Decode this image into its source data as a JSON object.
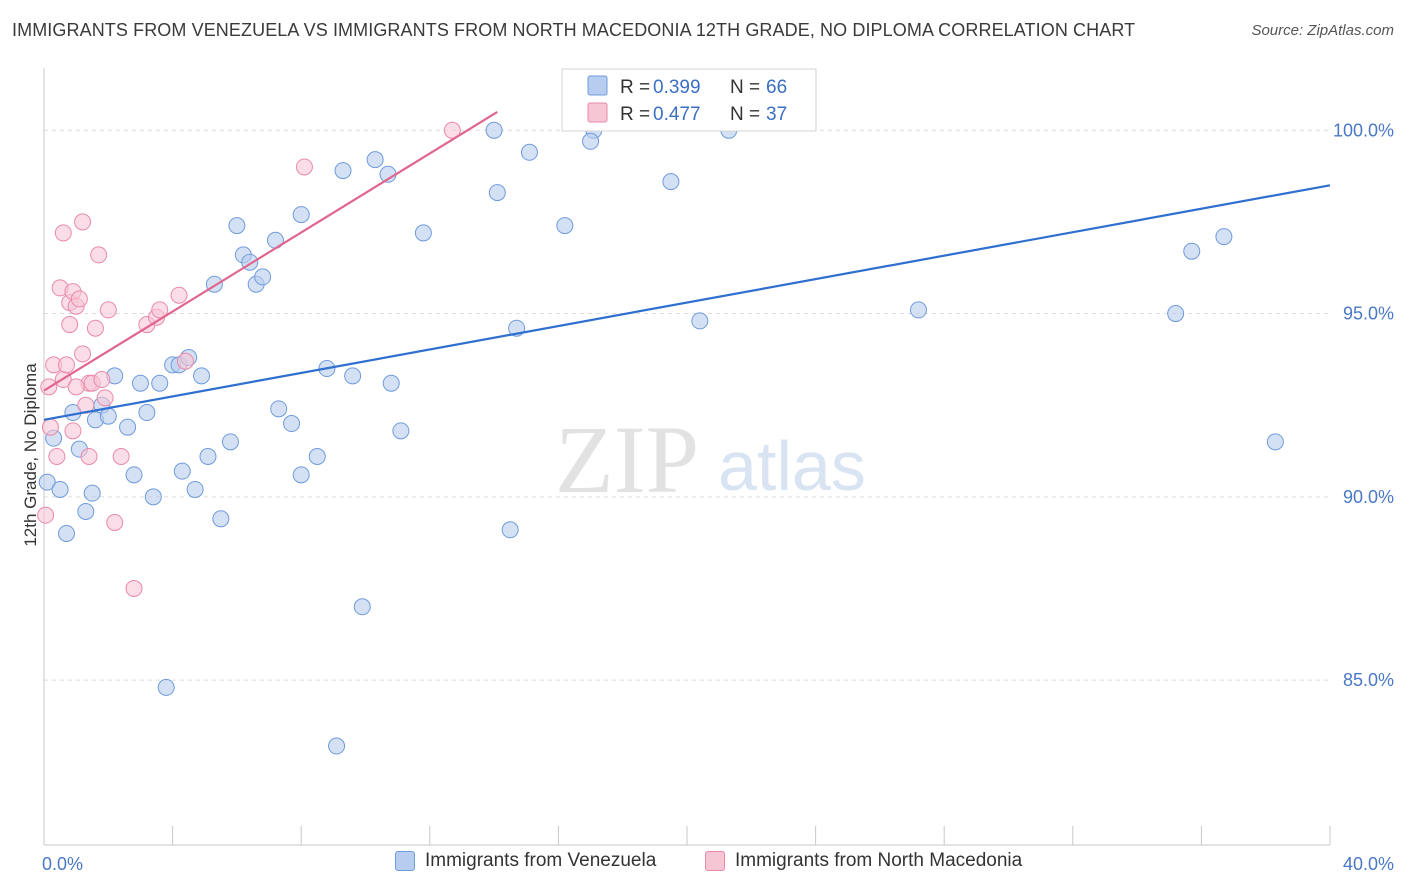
{
  "title": "IMMIGRANTS FROM VENEZUELA VS IMMIGRANTS FROM NORTH MACEDONIA 12TH GRADE, NO DIPLOMA CORRELATION CHART",
  "source": "Source: ZipAtlas.com",
  "watermark": {
    "zip": "ZIP",
    "atlas": "atlas"
  },
  "colors": {
    "blue_fill": "#b7cdef",
    "blue_stroke": "#6f9bdc",
    "blue_line": "#2f6fcf",
    "pink_fill": "#f7c6d5",
    "pink_stroke": "#ea8aa8",
    "pink_line": "#e0668d",
    "tick_text": "#4a78c6",
    "grid": "#dcdcdc"
  },
  "legend": {
    "rows": [
      {
        "r_label": "R = ",
        "r_value": "0.399",
        "n_label": "N = ",
        "n_value": "66"
      },
      {
        "r_label": "R = ",
        "r_value": "0.477",
        "n_label": "N = ",
        "n_value": "37"
      }
    ]
  },
  "chart_data": {
    "type": "scatter",
    "title": "IMMIGRANTS FROM VENEZUELA VS IMMIGRANTS FROM NORTH MACEDONIA 12TH GRADE, NO DIPLOMA CORRELATION CHART",
    "xlabel": "",
    "ylabel": "12th Grade, No Diploma",
    "xlim": [
      0,
      40
    ],
    "ylim": [
      80.5,
      101.7
    ],
    "x_tick_labels": [
      "0.0%",
      "40.0%"
    ],
    "y_ticks": [
      85,
      90,
      95,
      100
    ],
    "y_tick_labels": [
      "85.0%",
      "90.0%",
      "95.0%",
      "100.0%"
    ],
    "series": [
      {
        "name": "Immigrants from Venezuela",
        "color": "blue",
        "r": 0.399,
        "n": 66,
        "trend": {
          "x0": 0,
          "y0": 92.1,
          "x1": 40,
          "y1": 98.5
        },
        "points": [
          [
            0.1,
            90.4
          ],
          [
            0.3,
            91.6
          ],
          [
            0.5,
            90.2
          ],
          [
            0.7,
            89.0
          ],
          [
            0.9,
            92.3
          ],
          [
            1.1,
            91.3
          ],
          [
            1.3,
            89.6
          ],
          [
            1.5,
            90.1
          ],
          [
            1.6,
            92.1
          ],
          [
            1.8,
            92.5
          ],
          [
            2.0,
            92.2
          ],
          [
            2.2,
            93.3
          ],
          [
            2.6,
            91.9
          ],
          [
            2.8,
            90.6
          ],
          [
            3.0,
            93.1
          ],
          [
            3.2,
            92.3
          ],
          [
            3.4,
            90.0
          ],
          [
            3.6,
            93.1
          ],
          [
            3.8,
            84.8
          ],
          [
            4.0,
            93.6
          ],
          [
            4.2,
            93.6
          ],
          [
            4.3,
            90.7
          ],
          [
            4.5,
            93.8
          ],
          [
            4.7,
            90.2
          ],
          [
            4.9,
            93.3
          ],
          [
            5.1,
            91.1
          ],
          [
            5.3,
            95.8
          ],
          [
            5.5,
            89.4
          ],
          [
            5.8,
            91.5
          ],
          [
            6.0,
            97.4
          ],
          [
            6.2,
            96.6
          ],
          [
            6.4,
            96.4
          ],
          [
            6.6,
            95.8
          ],
          [
            6.8,
            96.0
          ],
          [
            7.2,
            97.0
          ],
          [
            7.3,
            92.4
          ],
          [
            7.7,
            92.0
          ],
          [
            8.0,
            90.6
          ],
          [
            8.0,
            97.7
          ],
          [
            8.5,
            91.1
          ],
          [
            8.8,
            93.5
          ],
          [
            9.1,
            83.2
          ],
          [
            9.3,
            98.9
          ],
          [
            9.6,
            93.3
          ],
          [
            9.9,
            87.0
          ],
          [
            10.3,
            99.2
          ],
          [
            10.7,
            98.8
          ],
          [
            10.8,
            93.1
          ],
          [
            11.1,
            91.8
          ],
          [
            11.8,
            97.2
          ],
          [
            14.0,
            100.0
          ],
          [
            14.1,
            98.3
          ],
          [
            14.5,
            89.1
          ],
          [
            14.7,
            94.6
          ],
          [
            15.1,
            99.4
          ],
          [
            16.2,
            97.4
          ],
          [
            17.1,
            100.0
          ],
          [
            19.5,
            98.6
          ],
          [
            20.4,
            94.8
          ],
          [
            21.3,
            100.0
          ],
          [
            27.2,
            95.1
          ],
          [
            35.2,
            95.0
          ],
          [
            35.7,
            96.7
          ],
          [
            36.7,
            97.1
          ],
          [
            38.3,
            91.5
          ],
          [
            17.0,
            99.7
          ]
        ]
      },
      {
        "name": "Immigrants from North Macedonia",
        "color": "pink",
        "r": 0.477,
        "n": 37,
        "trend": {
          "x0": 0,
          "y0": 92.9,
          "x1": 14.1,
          "y1": 100.5
        },
        "points": [
          [
            0.05,
            89.5
          ],
          [
            0.15,
            93.0
          ],
          [
            0.2,
            91.9
          ],
          [
            0.3,
            93.6
          ],
          [
            0.4,
            91.1
          ],
          [
            0.5,
            95.7
          ],
          [
            0.6,
            93.2
          ],
          [
            0.6,
            97.2
          ],
          [
            0.7,
            93.6
          ],
          [
            0.8,
            95.3
          ],
          [
            0.8,
            94.7
          ],
          [
            0.9,
            95.6
          ],
          [
            0.9,
            91.8
          ],
          [
            1.0,
            95.2
          ],
          [
            1.1,
            95.4
          ],
          [
            1.2,
            97.5
          ],
          [
            1.2,
            93.9
          ],
          [
            1.3,
            92.5
          ],
          [
            1.4,
            91.1
          ],
          [
            1.4,
            93.1
          ],
          [
            1.5,
            93.1
          ],
          [
            1.6,
            94.6
          ],
          [
            1.7,
            96.6
          ],
          [
            1.8,
            93.2
          ],
          [
            1.9,
            92.7
          ],
          [
            2.0,
            95.1
          ],
          [
            2.2,
            89.3
          ],
          [
            2.4,
            91.1
          ],
          [
            2.8,
            87.5
          ],
          [
            3.2,
            94.7
          ],
          [
            3.5,
            94.9
          ],
          [
            3.6,
            95.1
          ],
          [
            4.2,
            95.5
          ],
          [
            4.4,
            93.7
          ],
          [
            8.1,
            99.0
          ],
          [
            12.7,
            100.0
          ],
          [
            1.0,
            93.0
          ]
        ]
      }
    ]
  },
  "bottom_legend": {
    "series1": "Immigrants from Venezuela",
    "series2": "Immigrants from North Macedonia"
  }
}
